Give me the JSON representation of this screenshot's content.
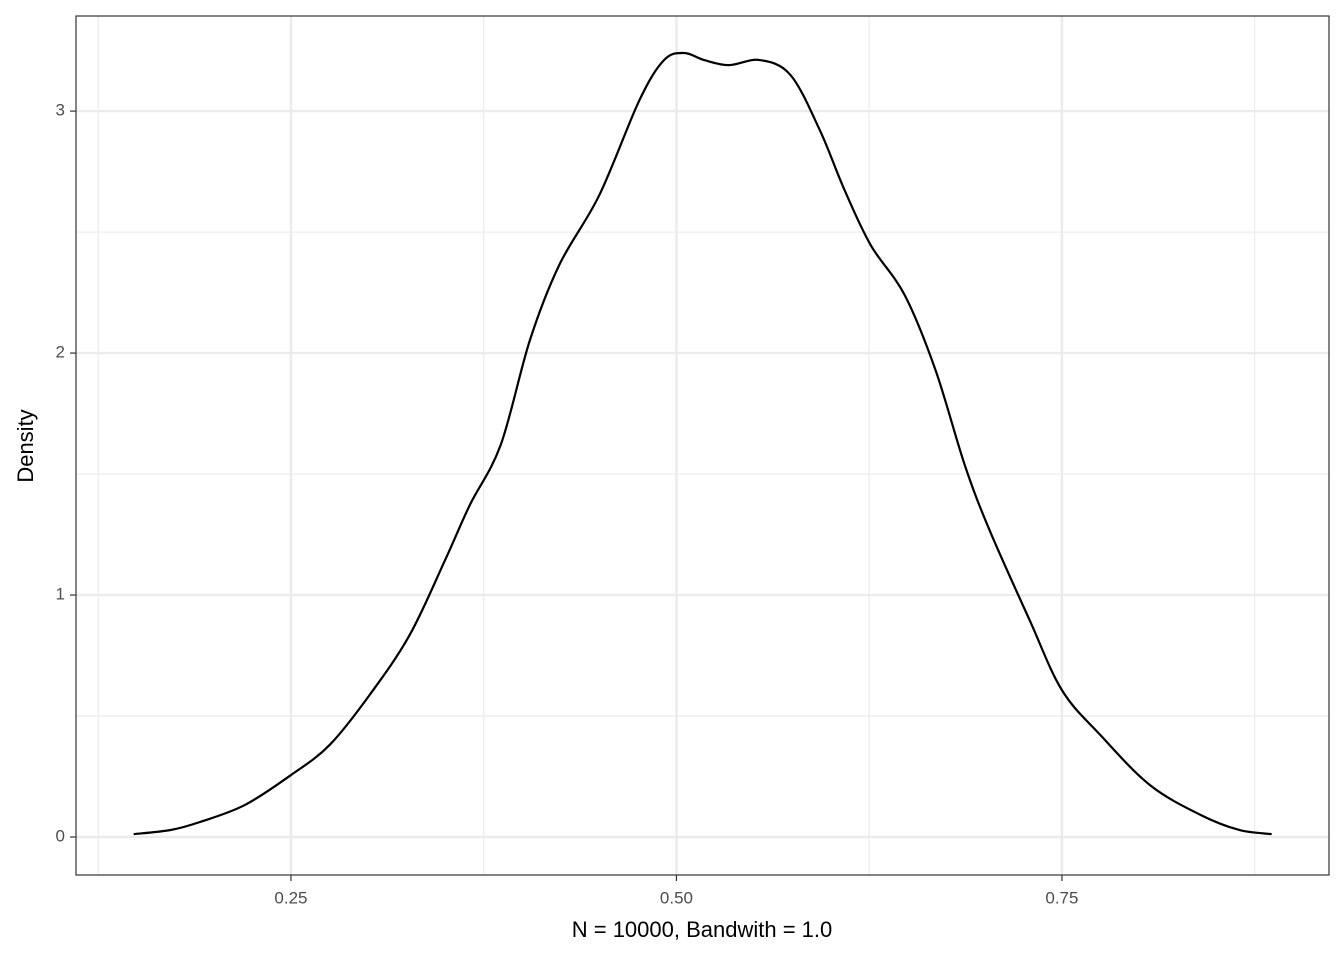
{
  "chart_data": {
    "type": "density",
    "xlabel": "N = 10000, Bandwith = 1.0",
    "ylabel": "Density",
    "x": [
      0.148,
      0.172,
      0.191,
      0.22,
      0.25,
      0.275,
      0.301,
      0.327,
      0.35,
      0.366,
      0.386,
      0.405,
      0.424,
      0.45,
      0.476,
      0.492,
      0.505,
      0.518,
      0.534,
      0.554,
      0.574,
      0.593,
      0.609,
      0.626,
      0.648,
      0.668,
      0.687,
      0.703,
      0.729,
      0.75,
      0.775,
      0.807,
      0.84,
      0.865,
      0.886
    ],
    "values": [
      0.012,
      0.029,
      0.062,
      0.132,
      0.256,
      0.38,
      0.587,
      0.835,
      1.145,
      1.372,
      1.62,
      2.054,
      2.364,
      2.653,
      3.045,
      3.211,
      3.24,
      3.211,
      3.19,
      3.211,
      3.149,
      2.921,
      2.674,
      2.446,
      2.24,
      1.93,
      1.537,
      1.269,
      0.897,
      0.607,
      0.421,
      0.215,
      0.091,
      0.029,
      0.012
    ],
    "color": "#000000",
    "xlim": [
      0.1106,
      0.9232
    ],
    "ylim": [
      -0.157,
      3.393
    ],
    "xticks": [
      0.25,
      {
        "value": 0.5,
        "label": "0.50"
      },
      0.75
    ],
    "yticks": [
      0,
      1,
      2,
      3
    ],
    "x_minor_ticks": [
      0.125,
      0.375,
      0.625,
      0.875
    ],
    "y_minor_ticks": [
      0.5,
      1.5,
      2.5
    ],
    "grid": true
  }
}
